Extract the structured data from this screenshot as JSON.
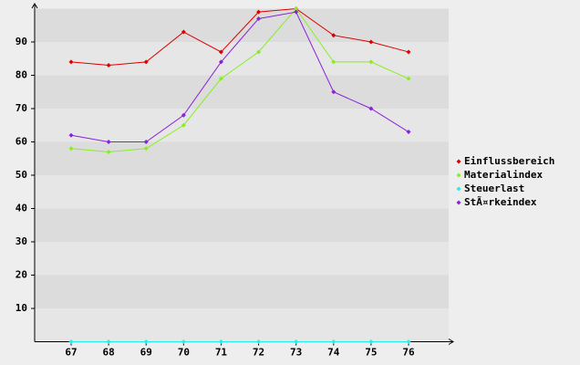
{
  "chart_data": {
    "type": "line",
    "categories": [
      "67",
      "68",
      "69",
      "70",
      "71",
      "72",
      "73",
      "74",
      "75",
      "76"
    ],
    "series": [
      {
        "name": "Einflussbereich",
        "color": "#dd0000",
        "values": [
          84,
          83,
          84,
          93,
          87,
          99,
          100,
          92,
          90,
          87
        ]
      },
      {
        "name": "Materialindex",
        "color": "#88ee22",
        "values": [
          58,
          57,
          58,
          65,
          79,
          87,
          100,
          84,
          84,
          79
        ]
      },
      {
        "name": "Steuerlast",
        "color": "#22eeee",
        "values": [
          0,
          0,
          0,
          0,
          0,
          0,
          0,
          0,
          0,
          0
        ]
      },
      {
        "name": "StÃ¤rkeindex",
        "color": "#8822dd",
        "values": [
          62,
          60,
          60,
          68,
          84,
          97,
          99,
          75,
          70,
          63
        ]
      }
    ],
    "ylim": [
      0,
      100
    ],
    "yticks": [
      10,
      20,
      30,
      40,
      50,
      60,
      70,
      80,
      90
    ],
    "grid": true,
    "legend": "right"
  }
}
